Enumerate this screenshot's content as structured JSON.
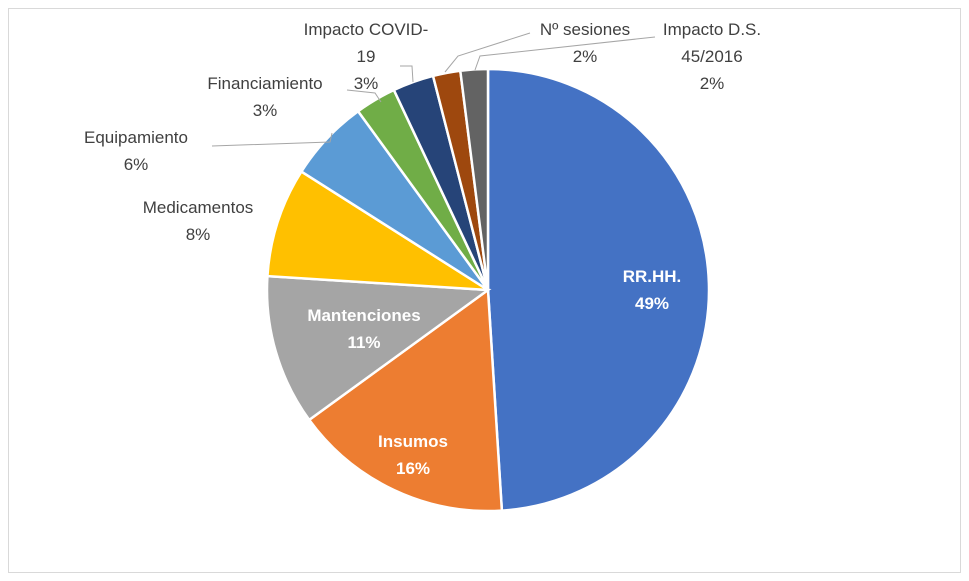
{
  "chart_data": {
    "type": "pie",
    "categories": [
      "RR.HH.",
      "Insumos",
      "Mantenciones",
      "Medicamentos",
      "Equipamiento",
      "Financiamiento",
      "Impacto COVID-19",
      "Nº sesiones",
      "Impacto D.S. 45/2016"
    ],
    "values": [
      49,
      16,
      11,
      8,
      6,
      3,
      3,
      2,
      2
    ],
    "value_labels": [
      "49%",
      "16%",
      "11%",
      "8%",
      "6%",
      "3%",
      "3%",
      "2%",
      "2%"
    ],
    "colors": [
      "#4472c4",
      "#ed7d31",
      "#a5a5a5",
      "#ffc000",
      "#5b9bd5",
      "#70ad47",
      "#264478",
      "#9e480e",
      "#636363"
    ]
  }
}
